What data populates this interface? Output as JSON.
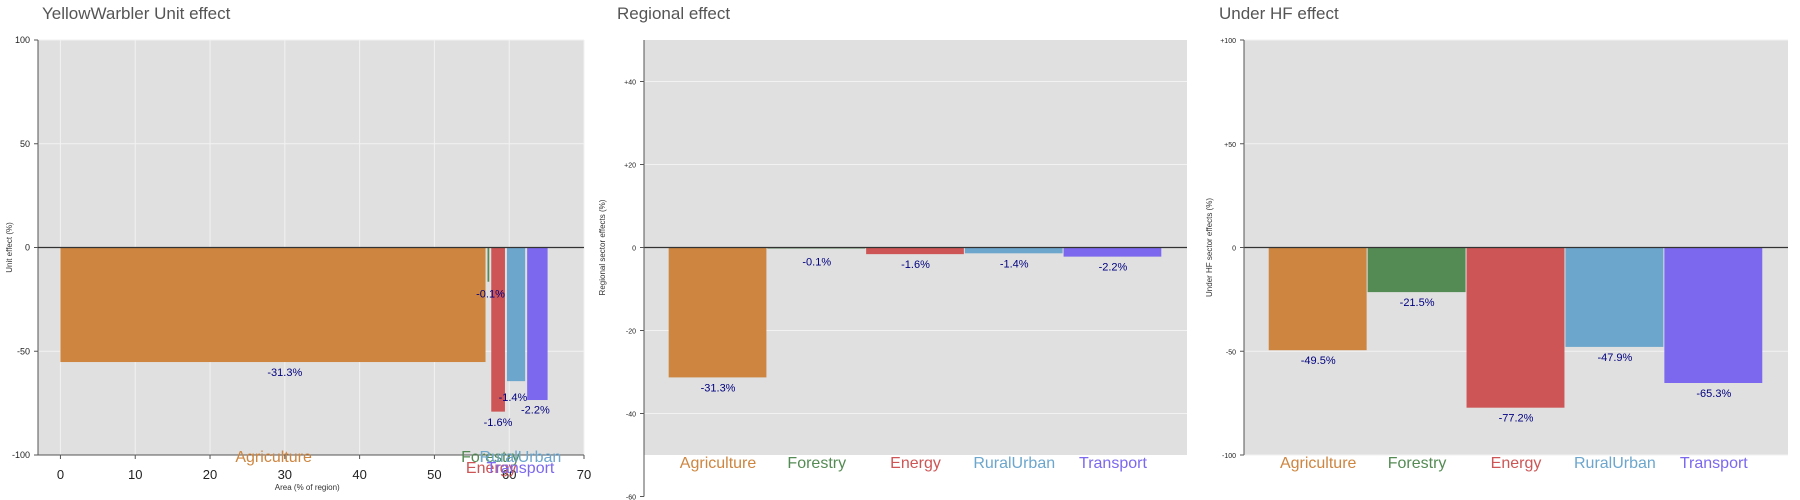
{
  "chart_data": [
    {
      "type": "bar",
      "title": "YellowWarbler Unit effect",
      "xlabel": "Area (% of region)",
      "ylabel": "Unit effect (%)",
      "xlim": [
        -3,
        70
      ],
      "ylim": [
        -100,
        100
      ],
      "yticks": [
        "100",
        "50",
        "0",
        "-50",
        "-100"
      ],
      "xticks": [
        "0",
        "10",
        "20",
        "30",
        "40",
        "50",
        "60",
        "70"
      ],
      "grid": true,
      "categories": [
        "Agriculture",
        "Forestry",
        "Energy",
        "RuralUrban",
        "Transport"
      ],
      "colors": [
        "#CD853F",
        "#548B54",
        "#CD5555",
        "#6CA6CD",
        "#7B68EE"
      ],
      "x_start": [
        0,
        57.1,
        57.6,
        59.7,
        62.4
      ],
      "x_end": [
        57.1,
        57.6,
        59.7,
        62.4,
        65.4
      ],
      "unit_effect": [
        -55.2,
        -16.5,
        -79.1,
        -64.4,
        -73.5
      ],
      "regional_effect_labels": [
        "-31.3%",
        "-0.1%",
        "-1.6%",
        "-1.4%",
        "-2.2%"
      ]
    },
    {
      "type": "bar",
      "title": "Regional effect",
      "xlabel": "",
      "ylabel": "Regional sector effects (%)",
      "ylim": [
        -50,
        50
      ],
      "yticks": [
        "+40",
        "+20",
        "0",
        "-20",
        "-40",
        "-60"
      ],
      "grid": true,
      "categories": [
        "Agriculture",
        "Forestry",
        "Energy",
        "RuralUrban",
        "Transport"
      ],
      "colors": [
        "#CD853F",
        "#548B54",
        "#CD5555",
        "#6CA6CD",
        "#7B68EE"
      ],
      "values": [
        -31.3,
        -0.1,
        -1.6,
        -1.4,
        -2.2
      ],
      "labels": [
        "-31.3%",
        "-0.1%",
        "-1.6%",
        "-1.4%",
        "-2.2%"
      ]
    },
    {
      "type": "bar",
      "title": "Under HF effect",
      "xlabel": "",
      "ylabel": "Under HF sector effects (%)",
      "ylim": [
        -100,
        100
      ],
      "yticks": [
        "+100",
        "+50",
        "0",
        "-50",
        "-100"
      ],
      "grid": true,
      "categories": [
        "Agriculture",
        "Forestry",
        "Energy",
        "RuralUrban",
        "Transport"
      ],
      "colors": [
        "#CD853F",
        "#548B54",
        "#CD5555",
        "#6CA6CD",
        "#7B68EE"
      ],
      "values": [
        -49.5,
        -21.5,
        -77.2,
        -47.9,
        -65.3
      ],
      "labels": [
        "-49.5%",
        "-21.5%",
        "-77.2%",
        "-47.9%",
        "-65.3%"
      ]
    }
  ]
}
